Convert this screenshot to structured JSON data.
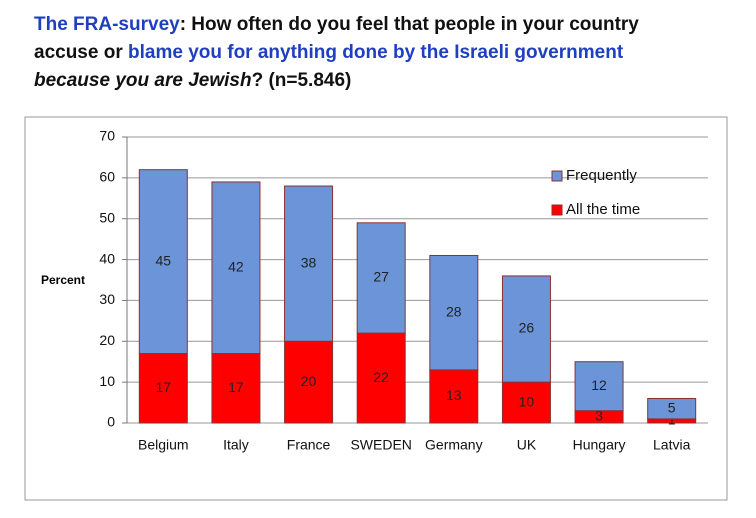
{
  "chart_data": {
    "type": "stacked-bar",
    "title": [
      "The FRA-survey",
      ": How often do you feel that people in your country",
      "accuse or ",
      "blame you for anything done by the Israeli government",
      "because you are Jewish",
      "? (n=5.846)"
    ],
    "y_label": "Percent",
    "categories": [
      "Belgium",
      "Italy",
      "France",
      "SWEDEN",
      "Germany",
      "UK",
      "Hungary",
      "Latvia"
    ],
    "series": [
      {
        "name": "All the time",
        "color": "#ff0000",
        "values": [
          17,
          17,
          20,
          22,
          13,
          10,
          3,
          1
        ]
      },
      {
        "name": "Frequently",
        "color": "#6b95d8",
        "values": [
          45,
          42,
          38,
          27,
          28,
          26,
          12,
          5
        ]
      }
    ],
    "ylim": [
      0,
      70
    ],
    "yticks": [
      0,
      10,
      20,
      30,
      40,
      50,
      60,
      70
    ],
    "grid": true,
    "legend": "top-right"
  }
}
